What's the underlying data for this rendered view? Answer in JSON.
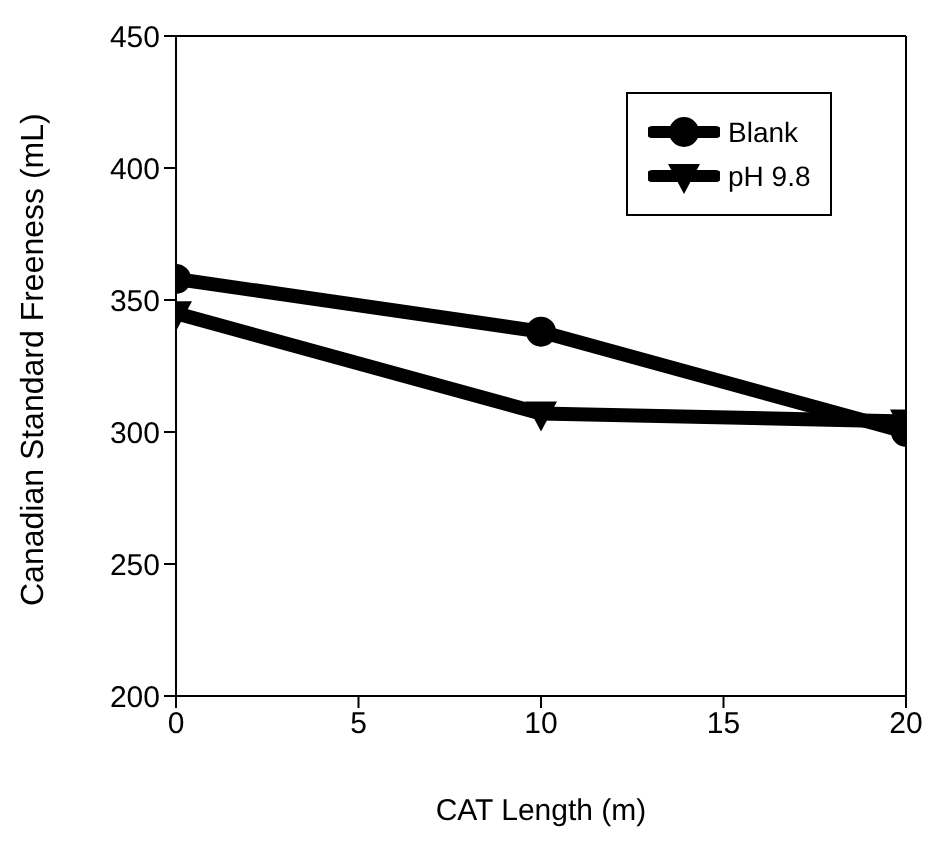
{
  "chart_data": {
    "type": "line",
    "xlabel": "CAT Length (m)",
    "ylabel": "Canadian Standard Freeness (mL)",
    "x": [
      0,
      10,
      20
    ],
    "series": [
      {
        "name": "Blank",
        "color": "#000000",
        "values": [
          358,
          338,
          300
        ],
        "marker": "circle"
      },
      {
        "name": "pH 9.8",
        "color": "#000000",
        "values": [
          345,
          307,
          304
        ],
        "marker": "triangle-down"
      }
    ],
    "xlim": [
      0,
      20
    ],
    "xticks": [
      0,
      5,
      10,
      15,
      20
    ],
    "ylim": [
      200,
      450
    ],
    "yticks": [
      200,
      250,
      300,
      350,
      400,
      450
    ],
    "grid": false,
    "legend": "top right",
    "line_style": "solid"
  }
}
